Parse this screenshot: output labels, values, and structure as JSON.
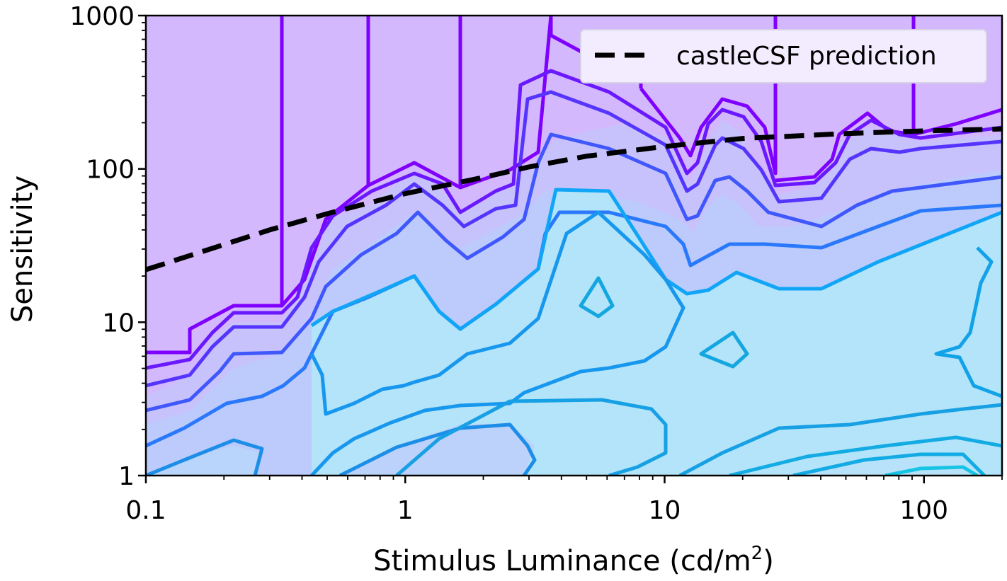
{
  "chart_data": {
    "type": "contour",
    "xlabel": "Stimulus Luminance (cd/m",
    "xlabel_sup": "2",
    "xlabel_close": ")",
    "ylabel": "Sensitivity",
    "x_scale": "log",
    "y_scale": "log",
    "xlim": [
      0.1,
      200
    ],
    "ylim": [
      1,
      1000
    ],
    "x_ticks": [
      0.1,
      1,
      10,
      100
    ],
    "x_tick_labels": [
      "0.1",
      "1",
      "10",
      "100"
    ],
    "y_ticks": [
      1,
      10,
      100,
      1000
    ],
    "y_tick_labels": [
      "1",
      "10",
      "100",
      "1000"
    ],
    "grid": false,
    "legend_placement": "top-right",
    "series": [
      {
        "name": "castleCSF prediction",
        "style": "dashed",
        "color": "#000000",
        "x": [
          0.1,
          0.3,
          0.5,
          1,
          2,
          3,
          5,
          10,
          20,
          50,
          100,
          200
        ],
        "y": [
          22,
          40,
          51,
          69,
          88,
          103,
          121,
          140,
          158,
          170,
          177,
          182
        ]
      }
    ],
    "colors": {
      "background_fill": "#d4b8fd",
      "colormap": "cool",
      "edge_contour": "#7f00ff",
      "inner_fill": "#b3e4f9",
      "mid_contour": "#0f9fe6"
    }
  }
}
